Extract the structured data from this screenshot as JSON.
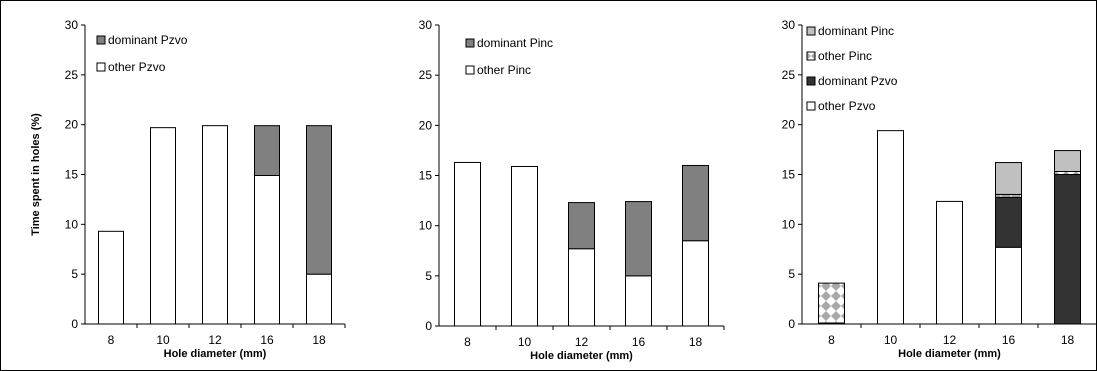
{
  "chart_data": [
    {
      "type": "bar",
      "stacked": true,
      "categories": [
        "8",
        "10",
        "12",
        "16",
        "18"
      ],
      "xlabel": "Hole diameter (mm)",
      "ylabel": "Time spent in holes (%)",
      "ylim": [
        0,
        30
      ],
      "yticks": [
        0,
        5,
        10,
        15,
        20,
        25,
        30
      ],
      "grid": false,
      "legend_position": "top-left",
      "series": [
        {
          "name": "other Pzvo",
          "color": "#ffffff",
          "pattern": "none",
          "values": [
            9.3,
            19.7,
            19.9,
            14.9,
            5.0
          ]
        },
        {
          "name": "dominant Pzvo",
          "color": "#808080",
          "pattern": "none",
          "values": [
            0,
            0,
            0,
            5.0,
            14.9
          ]
        }
      ]
    },
    {
      "type": "bar",
      "stacked": true,
      "categories": [
        "8",
        "10",
        "12",
        "16",
        "18"
      ],
      "xlabel": "Hole diameter (mm)",
      "ylabel": "",
      "ylim": [
        0,
        30
      ],
      "yticks": [
        0,
        5,
        10,
        15,
        20,
        25,
        30
      ],
      "grid": false,
      "legend_position": "top-left",
      "series": [
        {
          "name": "other Pinc",
          "color": "#ffffff",
          "pattern": "none",
          "values": [
            16.3,
            15.9,
            7.7,
            5.0,
            8.5
          ]
        },
        {
          "name": "dominant Pinc",
          "color": "#808080",
          "pattern": "none",
          "values": [
            0,
            0,
            4.6,
            7.4,
            7.5
          ]
        }
      ]
    },
    {
      "type": "bar",
      "stacked": true,
      "categories": [
        "8",
        "10",
        "12",
        "16",
        "18"
      ],
      "xlabel": "Hole diameter (mm)",
      "ylabel": "",
      "ylim": [
        0,
        30
      ],
      "yticks": [
        0,
        5,
        10,
        15,
        20,
        25,
        30
      ],
      "grid": false,
      "legend_position": "top-left",
      "series": [
        {
          "name": "other Pzvo",
          "color": "#ffffff",
          "pattern": "none",
          "values": [
            0.1,
            19.4,
            12.3,
            7.7,
            0
          ]
        },
        {
          "name": "dominant Pzvo",
          "color": "#333333",
          "pattern": "none",
          "values": [
            0,
            0,
            0,
            5.0,
            15.0
          ]
        },
        {
          "name": "other Pinc",
          "color": "#ffffff",
          "pattern": "checker",
          "values": [
            4.0,
            0,
            0,
            0.3,
            0.3
          ]
        },
        {
          "name": "dominant Pinc",
          "color": "#c0c0c0",
          "pattern": "none",
          "values": [
            0,
            0,
            0,
            3.2,
            2.1
          ]
        }
      ],
      "legend_order": [
        3,
        2,
        1,
        0
      ]
    }
  ]
}
